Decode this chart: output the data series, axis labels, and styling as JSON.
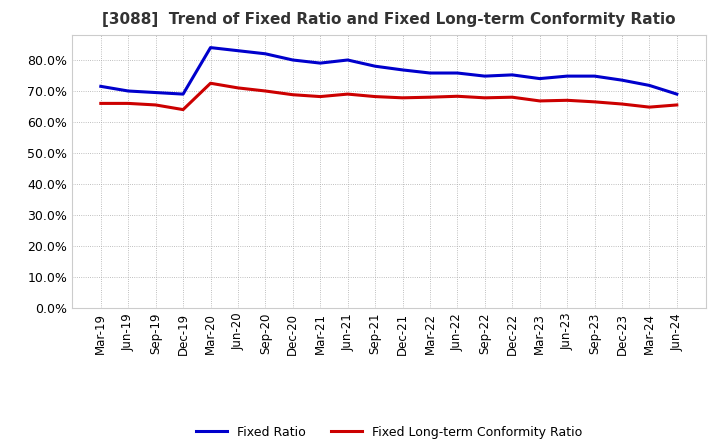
{
  "title": "[3088]  Trend of Fixed Ratio and Fixed Long-term Conformity Ratio",
  "title_fontsize": 11,
  "background_color": "#ffffff",
  "plot_bg_color": "#ffffff",
  "grid_color": "#aaaaaa",
  "ylim": [
    0.0,
    0.88
  ],
  "yticks": [
    0.0,
    0.1,
    0.2,
    0.3,
    0.4,
    0.5,
    0.6,
    0.7,
    0.8
  ],
  "x_labels": [
    "Mar-19",
    "Jun-19",
    "Sep-19",
    "Dec-19",
    "Mar-20",
    "Jun-20",
    "Sep-20",
    "Dec-20",
    "Mar-21",
    "Jun-21",
    "Sep-21",
    "Dec-21",
    "Mar-22",
    "Jun-22",
    "Sep-22",
    "Dec-22",
    "Mar-23",
    "Jun-23",
    "Sep-23",
    "Dec-23",
    "Mar-24",
    "Jun-24"
  ],
  "fixed_ratio": [
    0.715,
    0.7,
    0.695,
    0.69,
    0.84,
    0.83,
    0.82,
    0.8,
    0.79,
    0.8,
    0.78,
    0.768,
    0.758,
    0.758,
    0.748,
    0.752,
    0.74,
    0.748,
    0.748,
    0.735,
    0.718,
    0.69
  ],
  "fixed_lt_conformity": [
    0.66,
    0.66,
    0.655,
    0.64,
    0.725,
    0.71,
    0.7,
    0.688,
    0.682,
    0.69,
    0.682,
    0.678,
    0.68,
    0.683,
    0.678,
    0.68,
    0.668,
    0.67,
    0.665,
    0.658,
    0.648,
    0.655
  ],
  "line_color_fixed": "#0000cc",
  "line_color_lt": "#cc0000",
  "line_width": 2.2,
  "legend_labels": [
    "Fixed Ratio",
    "Fixed Long-term Conformity Ratio"
  ]
}
